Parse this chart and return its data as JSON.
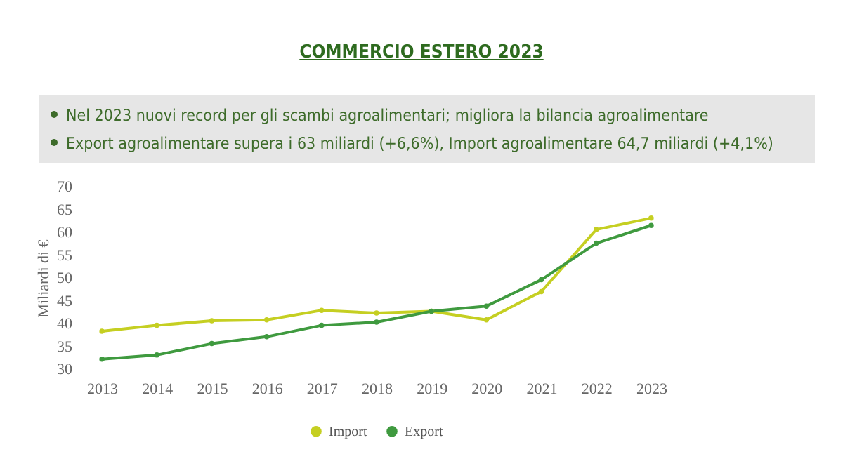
{
  "chart_data": {
    "type": "line",
    "title": "COMMERCIO ESTERO 2023",
    "annotations": [
      "Nel 2023 nuovi record per gli scambi agroalimentari; migliora la bilancia agroalimentare",
      "Export agroalimentare supera i 63 miliardi (+6,6%), Import agroalimentare 64,7 miliardi (+4,1%)"
    ],
    "ylabel": "Miliardi di €",
    "categories": [
      "2013",
      "2014",
      "2015",
      "2016",
      "2017",
      "2018",
      "2019",
      "2020",
      "2021",
      "2022",
      "2023"
    ],
    "series": [
      {
        "name": "Import",
        "color": "#c5cf22",
        "values": [
          38.3,
          39.6,
          40.6,
          40.8,
          42.9,
          42.3,
          42.7,
          40.8,
          47.0,
          60.6,
          63.1
        ]
      },
      {
        "name": "Export",
        "color": "#3f9a3f",
        "values": [
          32.2,
          33.1,
          35.6,
          37.1,
          39.6,
          40.3,
          42.7,
          43.8,
          49.6,
          57.6,
          61.5
        ]
      }
    ],
    "ylim": [
      30,
      70
    ],
    "yticks": [
      30,
      35,
      40,
      45,
      50,
      55,
      60,
      65,
      70
    ],
    "grid": false,
    "legend": "bottom",
    "marker": "circle",
    "line_style": "solid"
  }
}
